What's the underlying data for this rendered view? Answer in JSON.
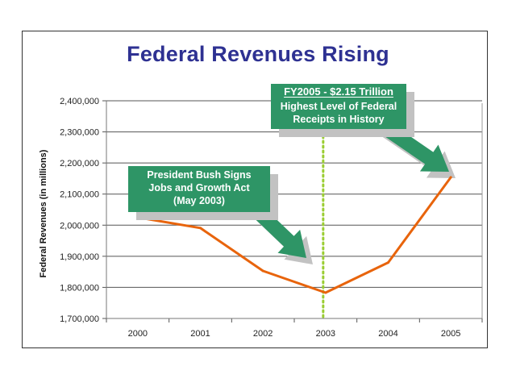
{
  "chart_data": {
    "type": "line",
    "title": "Federal Revenues Rising",
    "xlabel": "",
    "ylabel": "Federal Revenues (in millions)",
    "categories": [
      "2000",
      "2001",
      "2002",
      "2003",
      "2004",
      "2005"
    ],
    "series": [
      {
        "name": "Federal Revenues",
        "color": "#e8640c",
        "values": [
          2025000,
          1991000,
          1853000,
          1783000,
          1880000,
          2154000
        ]
      }
    ],
    "ylim": [
      1700000,
      2400000
    ],
    "yticks": [
      1700000,
      1800000,
      1900000,
      2000000,
      2100000,
      2200000,
      2300000,
      2400000
    ],
    "ytick_labels": [
      "1,700,000",
      "1,800,000",
      "1,900,000",
      "2,000,000",
      "2,100,000",
      "2,200,000",
      "2,300,000",
      "2,400,000"
    ],
    "grid": true,
    "legend": "none",
    "reference_line": {
      "category": "2003",
      "style": "dotted",
      "color": "#9acd32"
    },
    "annotations": [
      {
        "id": "2005",
        "lines": [
          "FY2005 - $2.15 Trillion",
          "Highest Level of Federal",
          "Receipts in History"
        ],
        "points_to": "2005",
        "color": "#2e9566"
      },
      {
        "id": "2003",
        "lines": [
          "President Bush Signs",
          "Jobs and Growth Act",
          "(May 2003)"
        ],
        "points_to": "2003",
        "color": "#2e9566"
      }
    ]
  }
}
